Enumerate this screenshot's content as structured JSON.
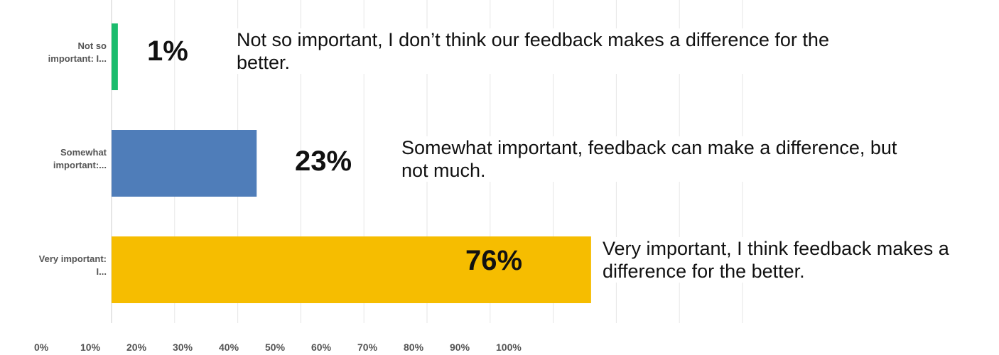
{
  "chart_data": {
    "type": "bar",
    "orientation": "horizontal",
    "categories": [
      "Not so important: I...",
      "Somewhat important:...",
      "Very important: I..."
    ],
    "values": [
      1,
      23,
      76
    ],
    "value_labels": [
      "1%",
      "23%",
      "76%"
    ],
    "colors": [
      "#1bbc6d",
      "#4f7db9",
      "#f6bd00"
    ],
    "annotations": [
      "Not so important, I don’t think our feedback makes a difference for the better.",
      "Somewhat important, feedback can make a difference, but not much.",
      "Very important, I think feedback makes a difference for the better."
    ],
    "xlim": [
      0,
      100
    ],
    "xticks": [
      {
        "value": 0,
        "label": "0%"
      },
      {
        "value": 10,
        "label": "10%"
      },
      {
        "value": 20,
        "label": "20%"
      },
      {
        "value": 30,
        "label": "30%"
      },
      {
        "value": 40,
        "label": "40%"
      },
      {
        "value": 50,
        "label": "50%"
      },
      {
        "value": 60,
        "label": "60%"
      },
      {
        "value": 70,
        "label": "70%"
      },
      {
        "value": 80,
        "label": "80%"
      },
      {
        "value": 90,
        "label": "90%"
      },
      {
        "value": 100,
        "label": "100%"
      }
    ],
    "grid": true
  }
}
